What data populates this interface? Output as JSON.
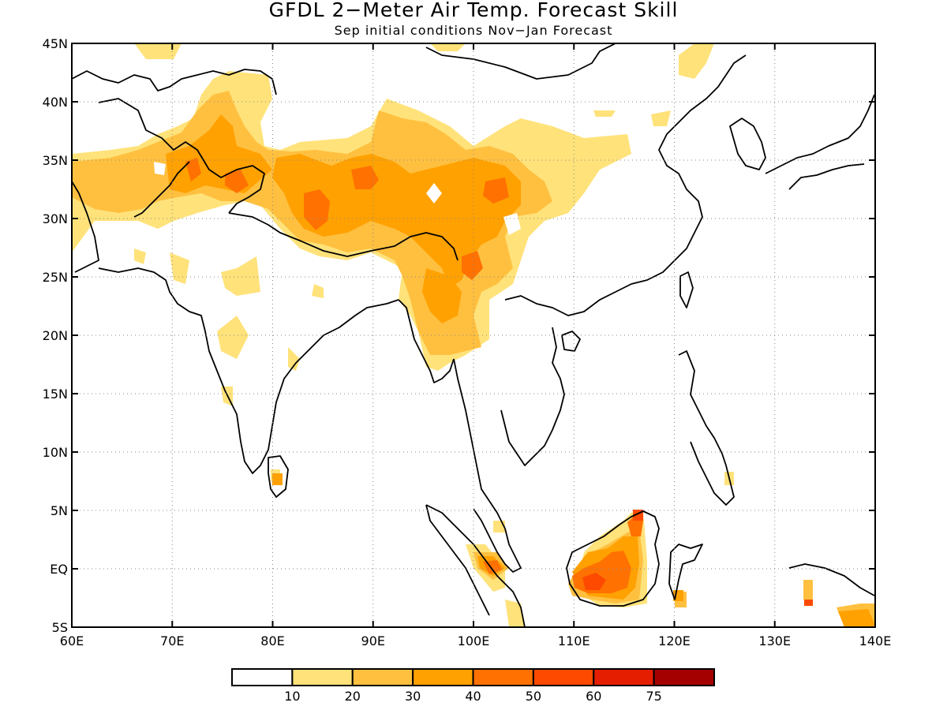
{
  "title": "GFDL 2−Meter Air Temp. Forecast Skill",
  "subtitle": "Sep initial conditions  Nov−Jan Forecast",
  "axes": {
    "x_ticks": [
      "60E",
      "70E",
      "80E",
      "90E",
      "100E",
      "110E",
      "120E",
      "130E",
      "140E"
    ],
    "y_ticks": [
      "45N",
      "40N",
      "35N",
      "30N",
      "25N",
      "20N",
      "15N",
      "10N",
      "5N",
      "EQ",
      "5S"
    ],
    "lon_range": [
      60,
      140
    ],
    "lat_range": [
      -5,
      45
    ],
    "grid": "dotted"
  },
  "colorbar": {
    "labels": [
      "10",
      "20",
      "30",
      "40",
      "50",
      "60",
      "75"
    ],
    "colors": [
      "#ffffff",
      "#ffe27a",
      "#ffc040",
      "#ffa100",
      "#ff7100",
      "#fd4a00",
      "#e61e00",
      "#a50000"
    ]
  },
  "chart_data": {
    "type": "heatmap",
    "title": "GFDL 2−Meter Air Temp. Forecast Skill",
    "subtitle": "Sep initial conditions  Nov−Jan Forecast",
    "xlabel": "",
    "ylabel": "",
    "x_range": [
      60,
      140
    ],
    "y_range": [
      -5,
      45
    ],
    "levels": [
      10,
      20,
      30,
      40,
      50,
      60,
      75
    ],
    "regions": [
      {
        "lon": [
          60,
          65
        ],
        "lat": [
          27,
          35
        ],
        "level": 20
      },
      {
        "lon": [
          70,
          80
        ],
        "lat": [
          30,
          36
        ],
        "level": 30
      },
      {
        "lon": [
          82,
          98
        ],
        "lat": [
          29,
          35
        ],
        "level": 30
      },
      {
        "lon": [
          85,
          90
        ],
        "lat": [
          30,
          32
        ],
        "level": 40
      },
      {
        "lon": [
          99,
          102
        ],
        "lat": [
          30,
          34
        ],
        "level": 30
      },
      {
        "lon": [
          98,
          102
        ],
        "lat": [
          24,
          27
        ],
        "level": 40
      },
      {
        "lon": [
          95,
          100
        ],
        "lat": [
          18,
          24
        ],
        "level": 20
      },
      {
        "lon": [
          110,
          117
        ],
        "lat": [
          -2,
          3
        ],
        "level": 40
      },
      {
        "lon": [
          111,
          114
        ],
        "lat": [
          -2,
          0
        ],
        "level": 50
      },
      {
        "lon": [
          100,
          103
        ],
        "lat": [
          -1,
          1
        ],
        "level": 30
      },
      {
        "lon": [
          80,
          81
        ],
        "lat": [
          7,
          8
        ],
        "level": 30
      }
    ]
  }
}
